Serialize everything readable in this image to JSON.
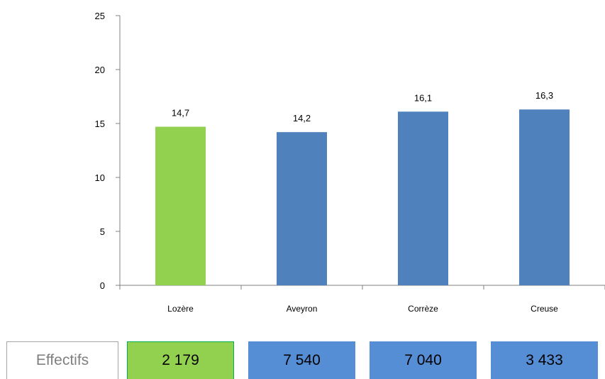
{
  "chart_data": {
    "type": "bar",
    "categories": [
      "Lozère",
      "Aveyron",
      "Corrèze",
      "Creuse"
    ],
    "values": [
      14.7,
      14.2,
      16.1,
      16.3
    ],
    "data_labels": [
      "14,7",
      "14,2",
      "16,1",
      "16,3"
    ],
    "ylim": [
      0,
      25
    ],
    "yticks": [
      0,
      5,
      10,
      15,
      20,
      25
    ],
    "grid": false,
    "colors": [
      "#92d050",
      "#4f81bd",
      "#4f81bd",
      "#4f81bd"
    ]
  },
  "effectifs": {
    "label": "Effectifs",
    "values": [
      "2 179",
      "7 540",
      "7 040",
      "3 433"
    ],
    "colors": [
      "#92d050",
      "#558ed5",
      "#558ed5",
      "#558ed5"
    ],
    "border_colors": [
      "#00b050",
      "#558ed5",
      "#558ed5",
      "#558ed5"
    ]
  }
}
